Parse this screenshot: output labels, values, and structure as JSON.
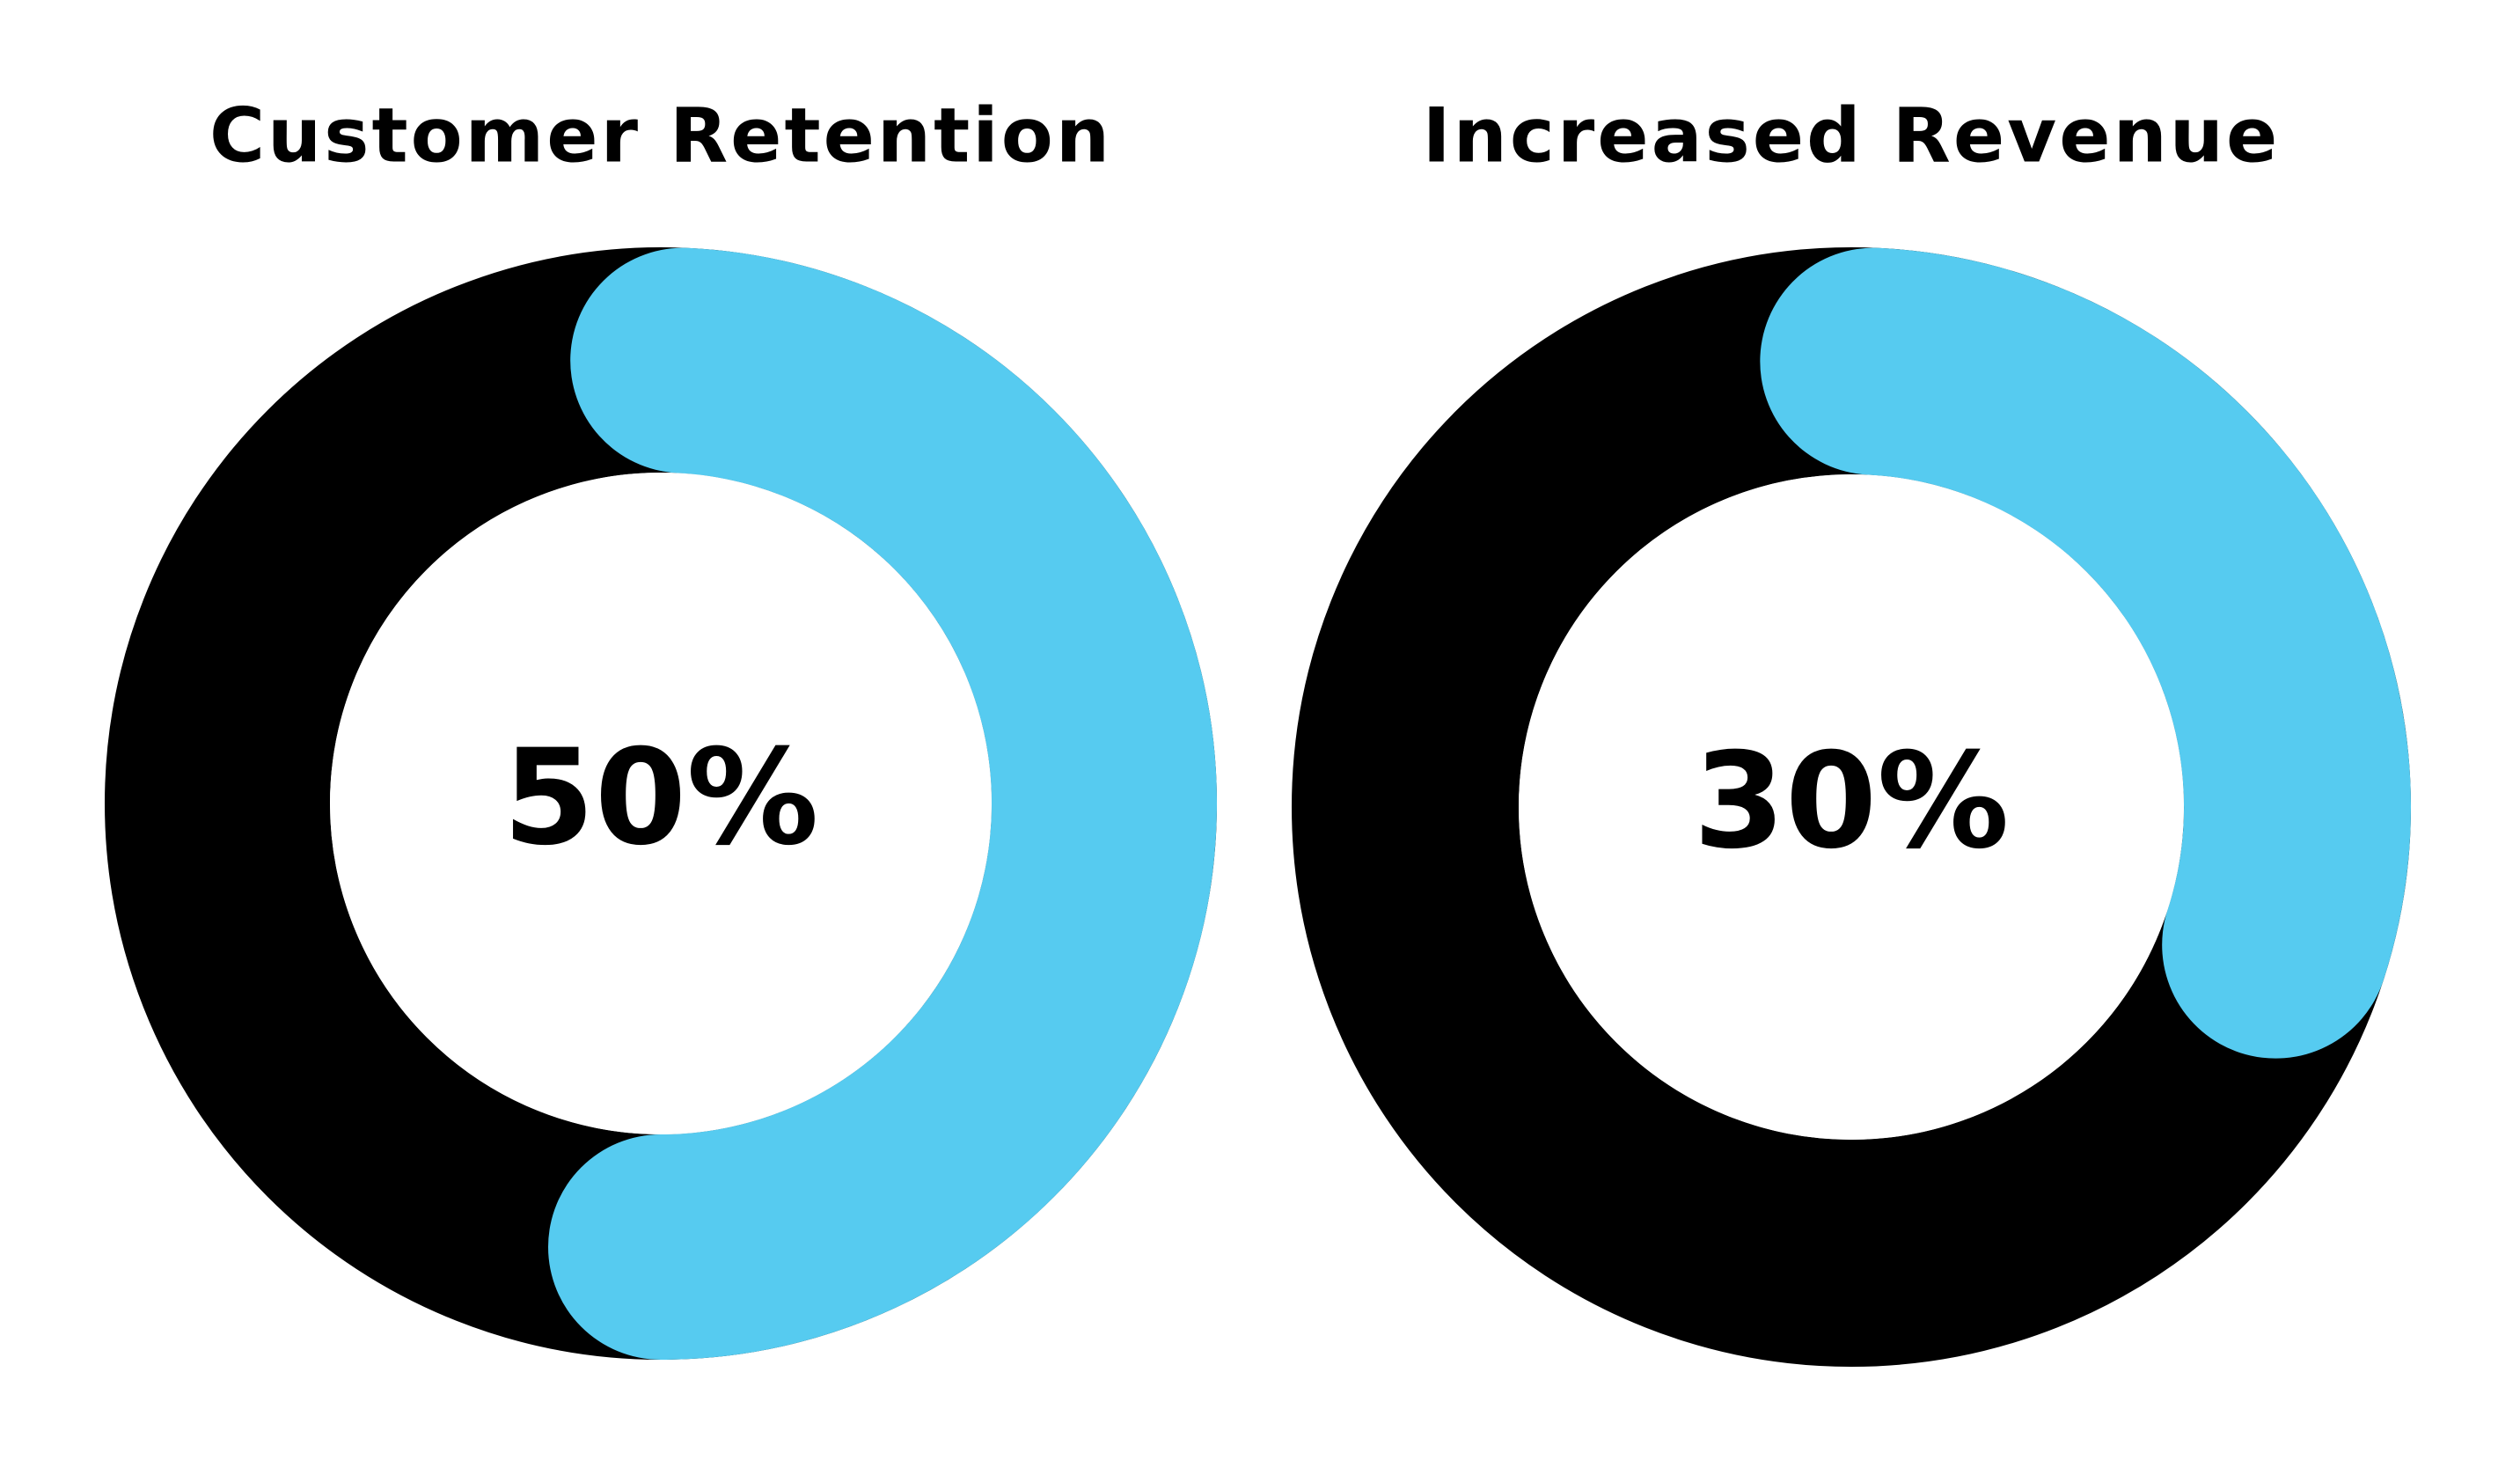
{
  "chart_data": [
    {
      "type": "donut",
      "title": "Customer Retention",
      "values": [
        50
      ],
      "value_labels": [
        "50%"
      ],
      "ylim": [
        0,
        100
      ],
      "color": "#56cbf0",
      "track_color": "#000000"
    },
    {
      "type": "donut",
      "title": "Increased Revenue",
      "values": [
        30
      ],
      "value_labels": [
        "30%"
      ],
      "ylim": [
        0,
        100
      ],
      "color": "#56cbf0",
      "track_color": "#000000"
    }
  ]
}
